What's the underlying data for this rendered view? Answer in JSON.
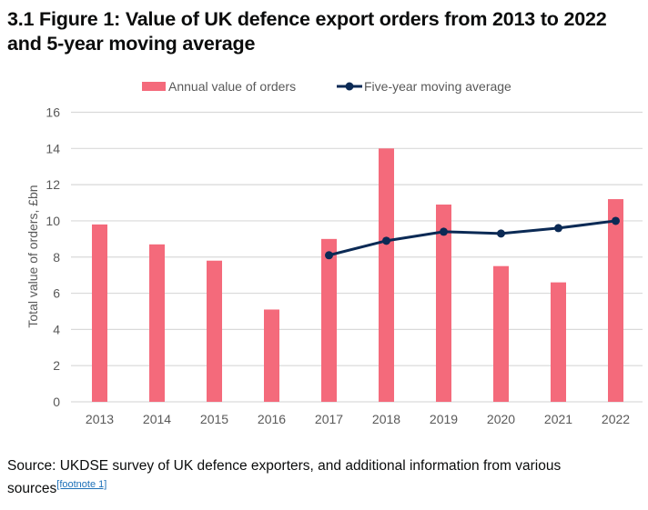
{
  "title": "3.1 Figure 1: Value of UK defence export orders from 2013 to 2022 and 5-year moving average",
  "source": {
    "text": "Source: UKDSE survey of UK defence exporters, and additional information from various sources",
    "footnote": "[footnote 1]"
  },
  "chart_data": {
    "type": "bar",
    "categories": [
      "2013",
      "2014",
      "2015",
      "2016",
      "2017",
      "2018",
      "2019",
      "2020",
      "2021",
      "2022"
    ],
    "series": [
      {
        "name": "Annual value of orders",
        "type": "bar",
        "color": "#f46a7b",
        "values": [
          9.8,
          8.7,
          7.8,
          5.1,
          9.0,
          14.0,
          10.9,
          7.5,
          6.6,
          11.2
        ]
      },
      {
        "name": "Five-year moving average",
        "type": "line",
        "color": "#0b2a55",
        "values": [
          null,
          null,
          null,
          null,
          8.1,
          8.9,
          9.4,
          9.3,
          9.6,
          10.0
        ]
      }
    ],
    "xlabel": "",
    "ylabel": "Total value of orders, £bn",
    "ylim": [
      0,
      16
    ],
    "yticks": [
      "0",
      "2",
      "4",
      "6",
      "8",
      "10",
      "12",
      "14",
      "16"
    ],
    "grid": true,
    "legend": "top"
  }
}
